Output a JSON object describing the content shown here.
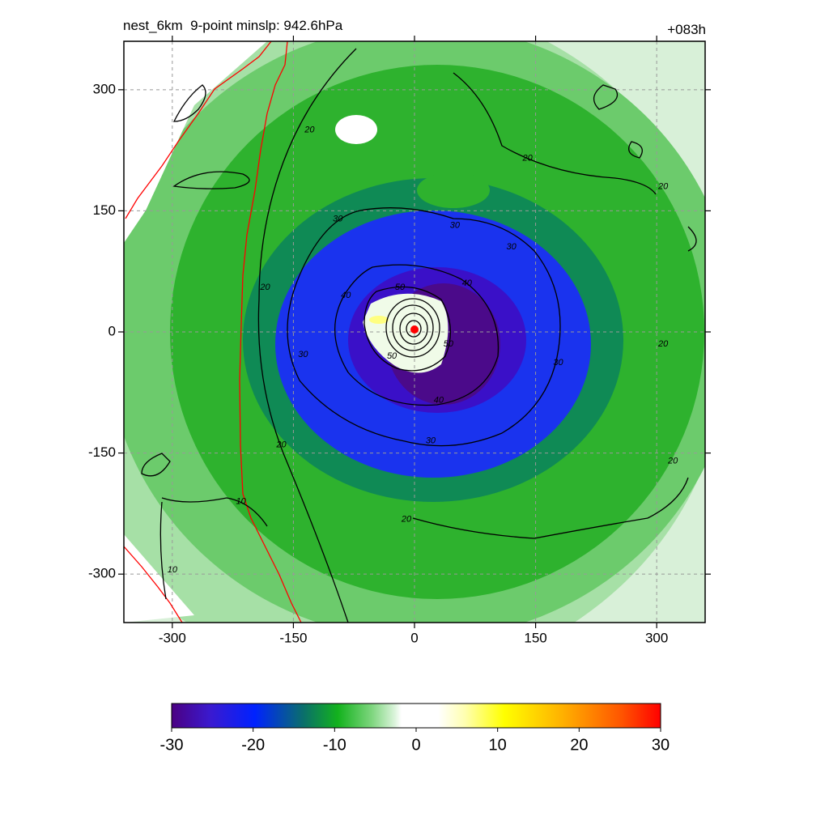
{
  "chart_data": {
    "type": "heatmap",
    "title_left": "nest_6km  9-point minslp: 942.6hPa",
    "title_right": "+083h",
    "xlim": [
      -360,
      360
    ],
    "ylim": [
      -360,
      360
    ],
    "x_ticks": [
      -300,
      -150,
      0,
      150,
      300
    ],
    "y_ticks": [
      300,
      150,
      0,
      -150,
      -300
    ],
    "x_tick_labels": [
      "-300",
      "-150",
      "0",
      "150",
      "300"
    ],
    "y_tick_labels": [
      "300",
      "150",
      "0",
      "-150",
      "-300"
    ],
    "grid": true,
    "colorbar": {
      "range": [
        -30,
        30
      ],
      "ticks": [
        -30,
        -20,
        -10,
        0,
        10,
        20,
        30
      ],
      "tick_labels": [
        "-30",
        "-20",
        "-10",
        "0",
        "10",
        "20",
        "30"
      ],
      "placement": "bottom"
    },
    "contour_labels": [
      {
        "text": "20",
        "x": -130,
        "y": 250
      },
      {
        "text": "30",
        "x": -95,
        "y": 140
      },
      {
        "text": "30",
        "x": 50,
        "y": 132
      },
      {
        "text": "30",
        "x": 120,
        "y": 105
      },
      {
        "text": "40",
        "x": -85,
        "y": 45
      },
      {
        "text": "50",
        "x": -18,
        "y": 55
      },
      {
        "text": "40",
        "x": 65,
        "y": 60
      },
      {
        "text": "50",
        "x": 42,
        "y": -15
      },
      {
        "text": "50",
        "x": -28,
        "y": -30
      },
      {
        "text": "40",
        "x": 30,
        "y": -85
      },
      {
        "text": "30",
        "x": 178,
        "y": -38
      },
      {
        "text": "30",
        "x": -138,
        "y": -28
      },
      {
        "text": "30",
        "x": 20,
        "y": -135
      },
      {
        "text": "20",
        "x": -185,
        "y": 55
      },
      {
        "text": "20",
        "x": -165,
        "y": -140
      },
      {
        "text": "20",
        "x": 140,
        "y": 215
      },
      {
        "text": "20",
        "x": 308,
        "y": 180
      },
      {
        "text": "20",
        "x": 308,
        "y": -15
      },
      {
        "text": "20",
        "x": 320,
        "y": -160
      },
      {
        "text": "20",
        "x": -10,
        "y": -232
      },
      {
        "text": "10",
        "x": -215,
        "y": -210
      },
      {
        "text": "10",
        "x": -300,
        "y": -295
      }
    ],
    "storm_center": {
      "x": 0,
      "y": 3
    }
  }
}
